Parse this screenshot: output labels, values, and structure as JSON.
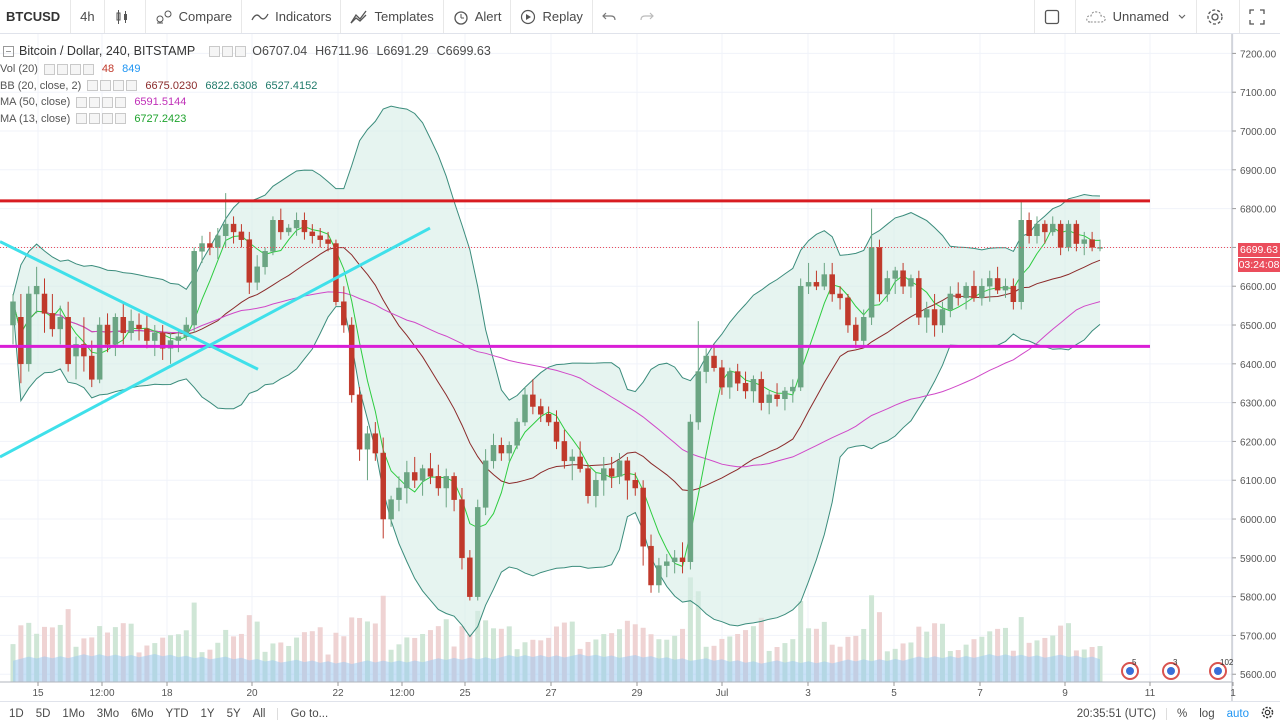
{
  "toolbar": {
    "symbol": "BTCUSD",
    "interval": "4h",
    "compare": "Compare",
    "indicators": "Indicators",
    "templates": "Templates",
    "alert": "Alert",
    "replay": "Replay",
    "layout_name": "Unnamed"
  },
  "legend": {
    "title": "Bitcoin / Dollar, 240, BITSTAMP",
    "ohlc": {
      "o": "O6707.04",
      "h": "H6711.96",
      "l": "L6691.29",
      "c": "C6699.63"
    },
    "vol": {
      "name": "Vol (20)",
      "v1": "48",
      "v2": "849"
    },
    "bb": {
      "name": "BB (20, close, 2)",
      "v1": "6675.0230",
      "v2": "6822.6308",
      "v3": "6527.4152"
    },
    "ma50": {
      "name": "MA (50, close)",
      "v1": "6591.5144"
    },
    "ma13": {
      "name": "MA (13, close)",
      "v1": "6727.2423"
    }
  },
  "price_axis": {
    "ticks": [
      "7200.00",
      "7100.00",
      "7000.00",
      "6900.00",
      "6800.00",
      "6700.00",
      "6600.00",
      "6500.00",
      "6400.00",
      "6300.00",
      "6200.00",
      "6100.00",
      "6000.00",
      "5900.00",
      "5800.00",
      "5700.00",
      "5600.00"
    ],
    "last_price": "6699.63",
    "countdown": "03:24:08"
  },
  "time_axis": {
    "ticks": [
      "15",
      "12:00",
      "18",
      "20",
      "22",
      "12:00",
      "25",
      "27",
      "29",
      "Jul",
      "3",
      "5",
      "7",
      "9",
      "11",
      "1"
    ]
  },
  "badges": [
    "5",
    "3",
    "102"
  ],
  "bottom": {
    "ranges": [
      "1D",
      "5D",
      "1Mo",
      "3Mo",
      "6Mo",
      "YTD",
      "1Y",
      "5Y",
      "All"
    ],
    "goto": "Go to...",
    "clock": "20:35:51 (UTC)",
    "percent": "%",
    "log": "log",
    "auto": "auto"
  },
  "colors": {
    "up": "#53b987",
    "down": "#eb4d5c",
    "candle_up": "#6ba583",
    "candle_down": "#c0392b",
    "resistance": "#d81c22",
    "support": "#d91ed6",
    "trend": "#3fe0ea",
    "bb_band": "#3b8c7c",
    "ma50": "#d048c8",
    "ma13": "#2ecc40",
    "basis": "#8b2a2a",
    "volume": "#9ecbf0",
    "accent": "#2196f3"
  },
  "chart_data": {
    "type": "candlestick",
    "ylim": [
      5580,
      7250
    ],
    "candles": [
      [
        6500,
        6580,
        6450,
        6560
      ],
      [
        6520,
        6580,
        6350,
        6400
      ],
      [
        6400,
        6600,
        6380,
        6580
      ],
      [
        6580,
        6650,
        6530,
        6600
      ],
      [
        6580,
        6620,
        6480,
        6530
      ],
      [
        6530,
        6580,
        6470,
        6490
      ],
      [
        6490,
        6550,
        6450,
        6520
      ],
      [
        6520,
        6560,
        6380,
        6400
      ],
      [
        6420,
        6470,
        6360,
        6450
      ],
      [
        6450,
        6520,
        6380,
        6420
      ],
      [
        6420,
        6460,
        6340,
        6360
      ],
      [
        6360,
        6520,
        6350,
        6500
      ],
      [
        6500,
        6530,
        6430,
        6450
      ],
      [
        6450,
        6530,
        6420,
        6520
      ],
      [
        6520,
        6560,
        6450,
        6480
      ],
      [
        6480,
        6540,
        6460,
        6510
      ],
      [
        6500,
        6530,
        6460,
        6490
      ],
      [
        6490,
        6530,
        6440,
        6460
      ],
      [
        6460,
        6500,
        6420,
        6480
      ],
      [
        6480,
        6500,
        6410,
        6440
      ],
      [
        6440,
        6480,
        6400,
        6460
      ],
      [
        6460,
        6490,
        6430,
        6470
      ],
      [
        6470,
        6520,
        6460,
        6500
      ],
      [
        6500,
        6700,
        6480,
        6690
      ],
      [
        6690,
        6730,
        6660,
        6710
      ],
      [
        6710,
        6740,
        6680,
        6700
      ],
      [
        6700,
        6750,
        6670,
        6730
      ],
      [
        6730,
        6840,
        6700,
        6760
      ],
      [
        6760,
        6780,
        6710,
        6740
      ],
      [
        6740,
        6760,
        6700,
        6720
      ],
      [
        6720,
        6740,
        6580,
        6610
      ],
      [
        6610,
        6680,
        6590,
        6650
      ],
      [
        6650,
        6700,
        6630,
        6690
      ],
      [
        6690,
        6780,
        6680,
        6770
      ],
      [
        6770,
        6800,
        6720,
        6740
      ],
      [
        6740,
        6760,
        6730,
        6750
      ],
      [
        6750,
        6790,
        6730,
        6770
      ],
      [
        6770,
        6790,
        6720,
        6740
      ],
      [
        6740,
        6760,
        6710,
        6730
      ],
      [
        6730,
        6750,
        6700,
        6720
      ],
      [
        6720,
        6740,
        6690,
        6710
      ],
      [
        6710,
        6720,
        6550,
        6560
      ],
      [
        6560,
        6600,
        6480,
        6500
      ],
      [
        6500,
        6520,
        6300,
        6320
      ],
      [
        6320,
        6340,
        6150,
        6180
      ],
      [
        6180,
        6240,
        6100,
        6220
      ],
      [
        6220,
        6250,
        6150,
        6170
      ],
      [
        6170,
        6210,
        5950,
        6000
      ],
      [
        6000,
        6060,
        5980,
        6050
      ],
      [
        6050,
        6110,
        6020,
        6080
      ],
      [
        6080,
        6150,
        6040,
        6120
      ],
      [
        6120,
        6160,
        6080,
        6100
      ],
      [
        6100,
        6140,
        6060,
        6130
      ],
      [
        6130,
        6170,
        6090,
        6110
      ],
      [
        6110,
        6140,
        6060,
        6080
      ],
      [
        6080,
        6130,
        6030,
        6110
      ],
      [
        6110,
        6120,
        6020,
        6050
      ],
      [
        6050,
        6080,
        5870,
        5900
      ],
      [
        5900,
        5920,
        5790,
        5800
      ],
      [
        5800,
        6050,
        5790,
        6030
      ],
      [
        6030,
        6180,
        6010,
        6150
      ],
      [
        6150,
        6220,
        6130,
        6190
      ],
      [
        6190,
        6210,
        6150,
        6170
      ],
      [
        6170,
        6200,
        6150,
        6190
      ],
      [
        6190,
        6260,
        6180,
        6250
      ],
      [
        6250,
        6340,
        6240,
        6320
      ],
      [
        6320,
        6360,
        6270,
        6290
      ],
      [
        6290,
        6310,
        6250,
        6270
      ],
      [
        6270,
        6290,
        6240,
        6250
      ],
      [
        6250,
        6280,
        6180,
        6200
      ],
      [
        6200,
        6230,
        6130,
        6150
      ],
      [
        6150,
        6180,
        6100,
        6160
      ],
      [
        6160,
        6200,
        6120,
        6130
      ],
      [
        6130,
        6140,
        6040,
        6060
      ],
      [
        6060,
        6120,
        6030,
        6100
      ],
      [
        6100,
        6160,
        6060,
        6130
      ],
      [
        6130,
        6160,
        6080,
        6110
      ],
      [
        6110,
        6170,
        6090,
        6150
      ],
      [
        6150,
        6160,
        6050,
        6100
      ],
      [
        6100,
        6120,
        6060,
        6080
      ],
      [
        6080,
        6100,
        5880,
        5930
      ],
      [
        5930,
        5960,
        5810,
        5830
      ],
      [
        5830,
        5900,
        5810,
        5880
      ],
      [
        5880,
        5910,
        5850,
        5890
      ],
      [
        5890,
        5920,
        5860,
        5900
      ],
      [
        5900,
        5940,
        5860,
        5890
      ],
      [
        5890,
        6270,
        5870,
        6250
      ],
      [
        6250,
        6510,
        6230,
        6380
      ],
      [
        6380,
        6440,
        6350,
        6420
      ],
      [
        6420,
        6450,
        6380,
        6390
      ],
      [
        6390,
        6410,
        6320,
        6340
      ],
      [
        6340,
        6390,
        6310,
        6380
      ],
      [
        6380,
        6400,
        6330,
        6350
      ],
      [
        6350,
        6380,
        6310,
        6330
      ],
      [
        6330,
        6370,
        6300,
        6360
      ],
      [
        6360,
        6380,
        6280,
        6300
      ],
      [
        6300,
        6330,
        6270,
        6320
      ],
      [
        6320,
        6350,
        6290,
        6310
      ],
      [
        6310,
        6340,
        6280,
        6330
      ],
      [
        6330,
        6360,
        6300,
        6340
      ],
      [
        6340,
        6620,
        6330,
        6600
      ],
      [
        6600,
        6660,
        6580,
        6610
      ],
      [
        6610,
        6640,
        6590,
        6600
      ],
      [
        6600,
        6660,
        6590,
        6630
      ],
      [
        6630,
        6660,
        6560,
        6580
      ],
      [
        6580,
        6600,
        6540,
        6570
      ],
      [
        6570,
        6580,
        6480,
        6500
      ],
      [
        6500,
        6520,
        6440,
        6460
      ],
      [
        6460,
        6540,
        6440,
        6520
      ],
      [
        6520,
        6800,
        6500,
        6700
      ],
      [
        6700,
        6720,
        6560,
        6580
      ],
      [
        6580,
        6640,
        6560,
        6620
      ],
      [
        6620,
        6650,
        6580,
        6640
      ],
      [
        6640,
        6660,
        6580,
        6600
      ],
      [
        6600,
        6630,
        6570,
        6620
      ],
      [
        6620,
        6640,
        6500,
        6520
      ],
      [
        6520,
        6560,
        6480,
        6540
      ],
      [
        6540,
        6580,
        6470,
        6500
      ],
      [
        6500,
        6560,
        6480,
        6540
      ],
      [
        6540,
        6600,
        6520,
        6580
      ],
      [
        6580,
        6610,
        6550,
        6570
      ],
      [
        6570,
        6610,
        6540,
        6600
      ],
      [
        6600,
        6640,
        6560,
        6570
      ],
      [
        6570,
        6620,
        6550,
        6600
      ],
      [
        6600,
        6640,
        6560,
        6620
      ],
      [
        6620,
        6650,
        6580,
        6590
      ],
      [
        6590,
        6620,
        6570,
        6600
      ],
      [
        6600,
        6620,
        6540,
        6560
      ],
      [
        6560,
        6820,
        6540,
        6770
      ],
      [
        6770,
        6790,
        6710,
        6730
      ],
      [
        6730,
        6780,
        6710,
        6760
      ],
      [
        6760,
        6770,
        6710,
        6740
      ],
      [
        6740,
        6780,
        6730,
        6760
      ],
      [
        6760,
        6770,
        6680,
        6700
      ],
      [
        6700,
        6770,
        6690,
        6760
      ],
      [
        6760,
        6770,
        6690,
        6710
      ],
      [
        6710,
        6740,
        6680,
        6720
      ],
      [
        6720,
        6740,
        6690,
        6700
      ],
      [
        6700,
        6720,
        6690,
        6700
      ]
    ],
    "resistance_level": 6820,
    "support_level": 6445,
    "volume_max": 1050
  }
}
